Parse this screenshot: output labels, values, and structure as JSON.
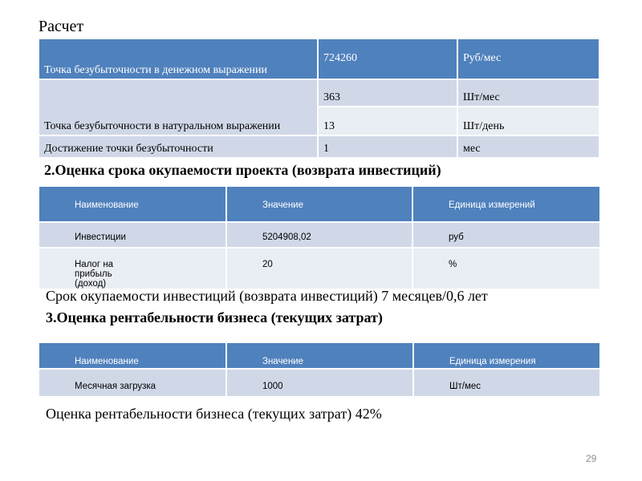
{
  "title": "Расчет",
  "table1": {
    "rows": [
      [
        "Точка безубыточности в денежном выражении",
        "724260",
        "Руб/мес"
      ],
      [
        "Точка безубыточности в натуральном выражении",
        "363",
        "Шт/мес"
      ],
      [
        "",
        "13",
        "Шт/день"
      ],
      [
        "Достижение точки безубыточности",
        "1",
        "мес"
      ]
    ]
  },
  "section2": {
    "heading": "2.Оценка срока окупаемости проекта (возврата инвестиций)",
    "headers": [
      "Наименование",
      "Значение",
      "Единица измерений"
    ],
    "rows": [
      [
        "Инвестиции",
        "5204908,02",
        "руб"
      ],
      [
        "Налог на прибыль (доход)",
        "20",
        "%"
      ]
    ],
    "result": "Срок окупаемости инвестиций (возврата инвестиций) 7 месяцев/0,6 лет"
  },
  "section3": {
    "heading": "3.Оценка рентабельности бизнеса (текущих затрат)",
    "headers": [
      "Наименование",
      "Значение",
      "Единица измерения"
    ],
    "rows": [
      [
        "Месячная загрузка",
        "1000",
        "Шт/мес"
      ]
    ],
    "result": "Оценка рентабельности бизнеса (текущих затрат) 42%"
  },
  "page_number": "29",
  "colors": {
    "header": "#4f81bd",
    "row_dark": "#d0d8e8",
    "row_light": "#e9edf4"
  }
}
